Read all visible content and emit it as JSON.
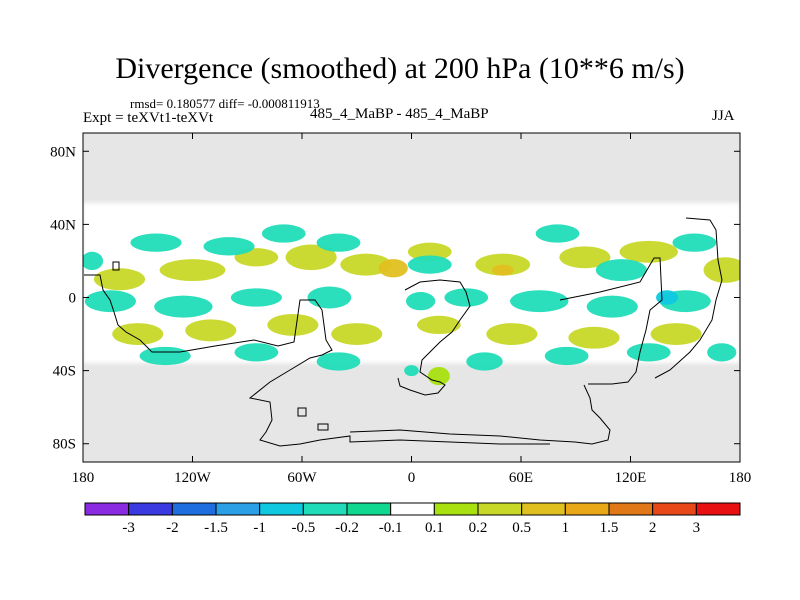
{
  "header": {
    "title": "Divergence (smoothed) at 200 hPa (10**6 m/s)",
    "stats": "rmsd= 0.180577 diff= -0.000811913",
    "expt": "Expt = teXVt1-teXVt",
    "runs": "485_4_MaBP - 485_4_MaBP",
    "season": "JJA"
  },
  "chart_data": {
    "type": "heatmap",
    "title": "Divergence (smoothed) at 200 hPa (10**6 m/s)",
    "projection": "cylindrical equidistant",
    "xlim": [
      -180,
      180
    ],
    "ylim": [
      -90,
      90
    ],
    "x_ticks": [
      {
        "value": -180,
        "label": "180"
      },
      {
        "value": -120,
        "label": "120W"
      },
      {
        "value": -60,
        "label": "60W"
      },
      {
        "value": 0,
        "label": "0"
      },
      {
        "value": 60,
        "label": "60E"
      },
      {
        "value": 120,
        "label": "120E"
      },
      {
        "value": 180,
        "label": "180"
      }
    ],
    "y_ticks": [
      {
        "value": 80,
        "label": "80N"
      },
      {
        "value": 40,
        "label": "40N"
      },
      {
        "value": 0,
        "label": "0"
      },
      {
        "value": -40,
        "label": "40S"
      },
      {
        "value": -80,
        "label": "80S"
      }
    ],
    "masked_color": "#e6e6e6",
    "colorbar": {
      "colors": [
        "#8a2be2",
        "#3a3ae0",
        "#1e6ee0",
        "#2aa0e6",
        "#10c8e0",
        "#20dcb8",
        "#10d890",
        "#ffffff",
        "#a8e010",
        "#c8d828",
        "#e0c020",
        "#e8a818",
        "#e07818",
        "#e84818",
        "#e81010"
      ],
      "labels": [
        "-3",
        "-2",
        "-1.5",
        "-1",
        "-0.5",
        "-0.2",
        "-0.1",
        "0.1",
        "0.2",
        "0.5",
        "1",
        "1.5",
        "2",
        "3"
      ]
    },
    "features": [
      {
        "lon": -160,
        "lat": 10,
        "rx": 14,
        "ry": 6,
        "level": 0.3
      },
      {
        "lon": -120,
        "lat": 15,
        "rx": 18,
        "ry": 6,
        "level": 0.3
      },
      {
        "lon": -85,
        "lat": 22,
        "rx": 12,
        "ry": 5,
        "level": 0.2
      },
      {
        "lon": -55,
        "lat": 22,
        "rx": 14,
        "ry": 7,
        "level": 0.3
      },
      {
        "lon": -25,
        "lat": 18,
        "rx": 14,
        "ry": 6,
        "level": 0.3
      },
      {
        "lon": -10,
        "lat": 16,
        "rx": 8,
        "ry": 5,
        "level": 0.8
      },
      {
        "lon": 10,
        "lat": 25,
        "rx": 12,
        "ry": 5,
        "level": 0.3
      },
      {
        "lon": 50,
        "lat": 18,
        "rx": 15,
        "ry": 6,
        "level": 0.3
      },
      {
        "lon": 50,
        "lat": 15,
        "rx": 6,
        "ry": 3,
        "level": 0.8
      },
      {
        "lon": 95,
        "lat": 22,
        "rx": 14,
        "ry": 6,
        "level": 0.3
      },
      {
        "lon": 130,
        "lat": 25,
        "rx": 16,
        "ry": 6,
        "level": 0.3
      },
      {
        "lon": 172,
        "lat": 15,
        "rx": 12,
        "ry": 7,
        "level": 0.3
      },
      {
        "lon": -140,
        "lat": 30,
        "rx": 14,
        "ry": 5,
        "level": -0.3
      },
      {
        "lon": -100,
        "lat": 28,
        "rx": 14,
        "ry": 5,
        "level": -0.3
      },
      {
        "lon": -70,
        "lat": 35,
        "rx": 12,
        "ry": 5,
        "level": -0.3
      },
      {
        "lon": -40,
        "lat": 30,
        "rx": 12,
        "ry": 5,
        "level": -0.3
      },
      {
        "lon": 10,
        "lat": 18,
        "rx": 12,
        "ry": 5,
        "level": -0.3
      },
      {
        "lon": 80,
        "lat": 35,
        "rx": 12,
        "ry": 5,
        "level": -0.3
      },
      {
        "lon": 115,
        "lat": 15,
        "rx": 14,
        "ry": 6,
        "level": -0.3
      },
      {
        "lon": 155,
        "lat": 30,
        "rx": 12,
        "ry": 5,
        "level": -0.3
      },
      {
        "lon": -175,
        "lat": 20,
        "rx": 6,
        "ry": 5,
        "level": -0.3
      },
      {
        "lon": -165,
        "lat": -2,
        "rx": 14,
        "ry": 6,
        "level": -0.3
      },
      {
        "lon": -125,
        "lat": -5,
        "rx": 16,
        "ry": 6,
        "level": -0.3
      },
      {
        "lon": -85,
        "lat": 0,
        "rx": 14,
        "ry": 5,
        "level": -0.3
      },
      {
        "lon": -45,
        "lat": 0,
        "rx": 12,
        "ry": 6,
        "level": -0.3
      },
      {
        "lon": 5,
        "lat": -2,
        "rx": 8,
        "ry": 5,
        "level": -0.3
      },
      {
        "lon": 30,
        "lat": 0,
        "rx": 12,
        "ry": 5,
        "level": -0.3
      },
      {
        "lon": 70,
        "lat": -2,
        "rx": 16,
        "ry": 6,
        "level": -0.3
      },
      {
        "lon": 110,
        "lat": -5,
        "rx": 14,
        "ry": 6,
        "level": -0.3
      },
      {
        "lon": 150,
        "lat": -2,
        "rx": 14,
        "ry": 6,
        "level": -0.3
      },
      {
        "lon": 140,
        "lat": 0,
        "rx": 6,
        "ry": 4,
        "level": -1.0
      },
      {
        "lon": -150,
        "lat": -20,
        "rx": 14,
        "ry": 6,
        "level": 0.3
      },
      {
        "lon": -110,
        "lat": -18,
        "rx": 14,
        "ry": 6,
        "level": 0.3
      },
      {
        "lon": -65,
        "lat": -15,
        "rx": 14,
        "ry": 6,
        "level": 0.3
      },
      {
        "lon": -30,
        "lat": -20,
        "rx": 14,
        "ry": 6,
        "level": 0.3
      },
      {
        "lon": 15,
        "lat": -15,
        "rx": 12,
        "ry": 5,
        "level": 0.3
      },
      {
        "lon": 55,
        "lat": -20,
        "rx": 14,
        "ry": 6,
        "level": 0.3
      },
      {
        "lon": 100,
        "lat": -22,
        "rx": 14,
        "ry": 6,
        "level": 0.3
      },
      {
        "lon": 145,
        "lat": -20,
        "rx": 14,
        "ry": 6,
        "level": 0.3
      },
      {
        "lon": -135,
        "lat": -32,
        "rx": 14,
        "ry": 5,
        "level": -0.3
      },
      {
        "lon": -85,
        "lat": -30,
        "rx": 12,
        "ry": 5,
        "level": -0.3
      },
      {
        "lon": -40,
        "lat": -35,
        "rx": 12,
        "ry": 5,
        "level": -0.3
      },
      {
        "lon": 40,
        "lat": -35,
        "rx": 10,
        "ry": 5,
        "level": -0.3
      },
      {
        "lon": 85,
        "lat": -32,
        "rx": 12,
        "ry": 5,
        "level": -0.3
      },
      {
        "lon": 130,
        "lat": -30,
        "rx": 12,
        "ry": 5,
        "level": -0.3
      },
      {
        "lon": 170,
        "lat": -30,
        "rx": 8,
        "ry": 5,
        "level": -0.3
      },
      {
        "lon": 15,
        "lat": -43,
        "rx": 6,
        "ry": 5,
        "level": 0.15
      },
      {
        "lon": 0,
        "lat": -40,
        "rx": 4,
        "ry": 3,
        "level": -0.3
      }
    ]
  }
}
